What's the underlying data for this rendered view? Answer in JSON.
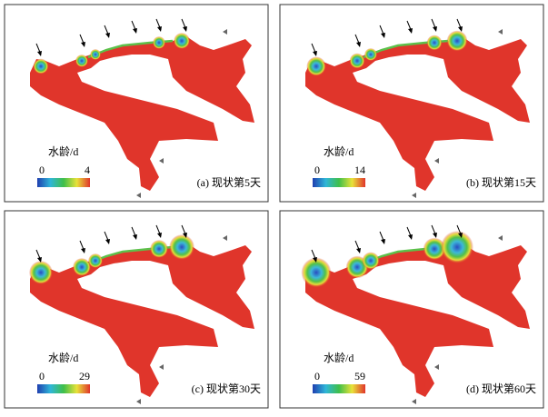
{
  "panels": [
    {
      "legend_title": "水龄/d",
      "legend_min": "0",
      "legend_max": "4",
      "caption": "(a) 现状第5天"
    },
    {
      "legend_title": "水龄/d",
      "legend_min": "0",
      "legend_max": "14",
      "caption": "(b) 现状第15天"
    },
    {
      "legend_title": "水龄/d",
      "legend_min": "0",
      "legend_max": "29",
      "caption": "(c) 现状第30天"
    },
    {
      "legend_title": "水龄/d",
      "legend_min": "0",
      "legend_max": "59",
      "caption": "(d) 现状第60天"
    }
  ]
}
